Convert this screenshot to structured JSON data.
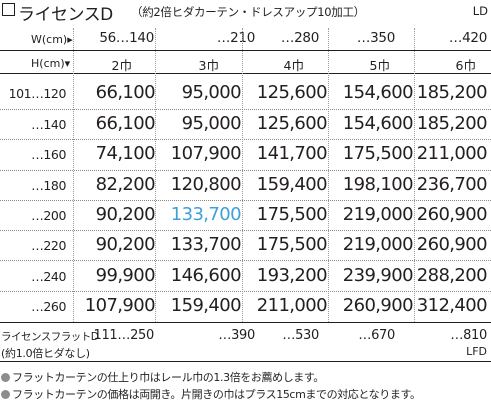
{
  "title": {
    "main": "ライセンスD",
    "sub": "（約2倍ヒダカーテン・ドレスアップ10加工）",
    "code": "LD"
  },
  "header": {
    "width_label": "W(cm)▸",
    "height_label": "H(cm)▾"
  },
  "widths": [
    "56…140",
    "…210",
    "…280",
    "…350",
    "…420"
  ],
  "widths_in_panels": [
    "2巾",
    "3巾",
    "4巾",
    "5巾",
    "6巾"
  ],
  "rows": [
    {
      "height": "101…120",
      "prices": [
        "66,100",
        "95,000",
        "125,600",
        "154,600",
        "185,200"
      ]
    },
    {
      "height": "…140",
      "prices": [
        "66,100",
        "95,000",
        "125,600",
        "154,600",
        "185,200"
      ]
    },
    {
      "height": "…160",
      "prices": [
        "74,100",
        "107,900",
        "141,700",
        "175,500",
        "211,000"
      ]
    },
    {
      "height": "…180",
      "prices": [
        "82,200",
        "120,800",
        "159,400",
        "198,100",
        "236,700"
      ]
    },
    {
      "height": "…200",
      "prices": [
        "90,200",
        "133,700",
        "175,500",
        "219,000",
        "260,900"
      ]
    },
    {
      "height": "…220",
      "prices": [
        "90,200",
        "133,700",
        "175,500",
        "219,000",
        "260,900"
      ]
    },
    {
      "height": "…240",
      "prices": [
        "99,900",
        "146,600",
        "193,200",
        "239,900",
        "288,200"
      ]
    },
    {
      "height": "…260",
      "prices": [
        "107,900",
        "159,400",
        "211,000",
        "260,900",
        "312,400"
      ]
    }
  ],
  "highlight": {
    "row": 4,
    "col": 1,
    "color": "#3f9fd8"
  },
  "flat": {
    "label_line1": "ライセンスフラットD",
    "label_line2": "(約1.0倍ヒダなし)",
    "widths": [
      "111…250",
      "…390",
      "…530",
      "…670",
      "…810"
    ],
    "code": "LFD"
  },
  "notes": [
    "フラットカーテンの仕上り巾はレール巾の1.3倍をお薦めします。",
    "フラットカーテンの価格は両開き。片開きの巾はプラス15cmまでの対応となります。"
  ]
}
